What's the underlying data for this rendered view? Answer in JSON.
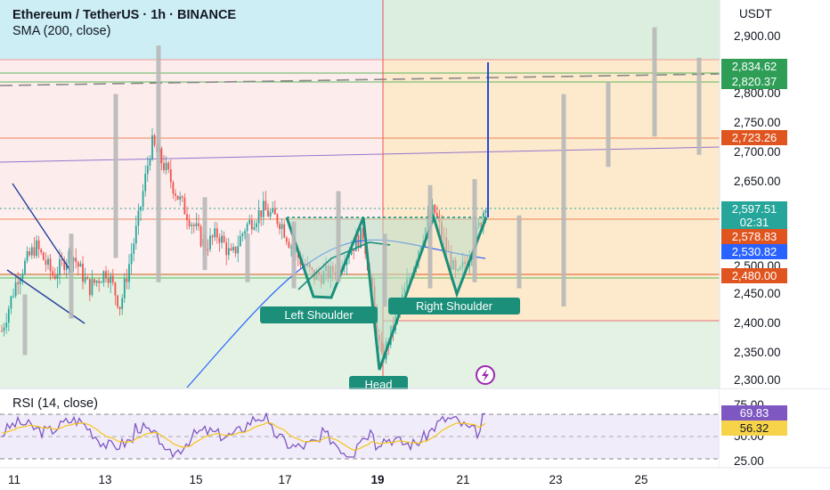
{
  "header": {
    "title": "Ethereum / TetherUS · 1h · BINANCE",
    "indicator": "SMA (200, close)"
  },
  "price_axis": {
    "unit": "USDT",
    "ticks": [
      "2,900.00",
      "2,850.00",
      "2,800.00",
      "2,750.00",
      "2,700.00",
      "2,650.00",
      "2,600.00",
      "2,550.00",
      "2,500.00",
      "2,450.00",
      "2,400.00",
      "2,350.00",
      "2,300.00"
    ]
  },
  "price_tags": [
    {
      "text": "2,834.62",
      "color": "#2e9e57"
    },
    {
      "text": "2,820.37",
      "color": "#2e9e57"
    },
    {
      "text": "2,723.26",
      "color": "#e0551f"
    },
    {
      "text": "2,597.51",
      "text2": "02:31",
      "color": "#26a69a"
    },
    {
      "text": "2,578.83",
      "color": "#e0551f"
    },
    {
      "text": "2,530.82",
      "color": "#2962ff"
    },
    {
      "text": "2,480.00",
      "color": "#e0551f"
    }
  ],
  "time_axis": {
    "labels": [
      "11",
      "13",
      "15",
      "17",
      "19",
      "21",
      "23",
      "25"
    ],
    "bold_label": "19"
  },
  "pattern_labels": {
    "left_shoulder": "Left Shoulder",
    "head": "Head",
    "right_shoulder": "Right Shoulder"
  },
  "rsi": {
    "title": "RSI (14, close)",
    "ticks": [
      "75.00",
      "50.00",
      "25.00"
    ],
    "value_tag": "69.83",
    "ma_tag": "56.32",
    "value_color": "#7e57c2",
    "ma_color": "#f7d34a"
  },
  "colors": {
    "up": "#26a69a",
    "down": "#ef5350",
    "sma": "#2962ff",
    "pattern": "#1b8f7a",
    "projection": "#b8b8b8"
  },
  "chart_data": {
    "type": "candlestick",
    "symbol": "Ethereum / TetherUS",
    "interval": "1h",
    "exchange": "BINANCE",
    "y_unit": "USDT",
    "ylim": [
      2285,
      2925
    ],
    "x_ticks": [
      "11",
      "13",
      "15",
      "17",
      "19",
      "21",
      "23",
      "25"
    ],
    "last_price": 2597.51,
    "horizontal_levels": [
      2834.62,
      2820.37,
      2723.26,
      2578.83,
      2480.0
    ],
    "sma_200_last": 2530.82,
    "patterns": [
      "Left Shoulder",
      "Head",
      "Right Shoulder"
    ],
    "projection_high": 2840,
    "rsi": {
      "period": 14,
      "last": 69.83,
      "ma_last": 56.32,
      "levels": [
        75,
        50,
        25
      ]
    }
  }
}
